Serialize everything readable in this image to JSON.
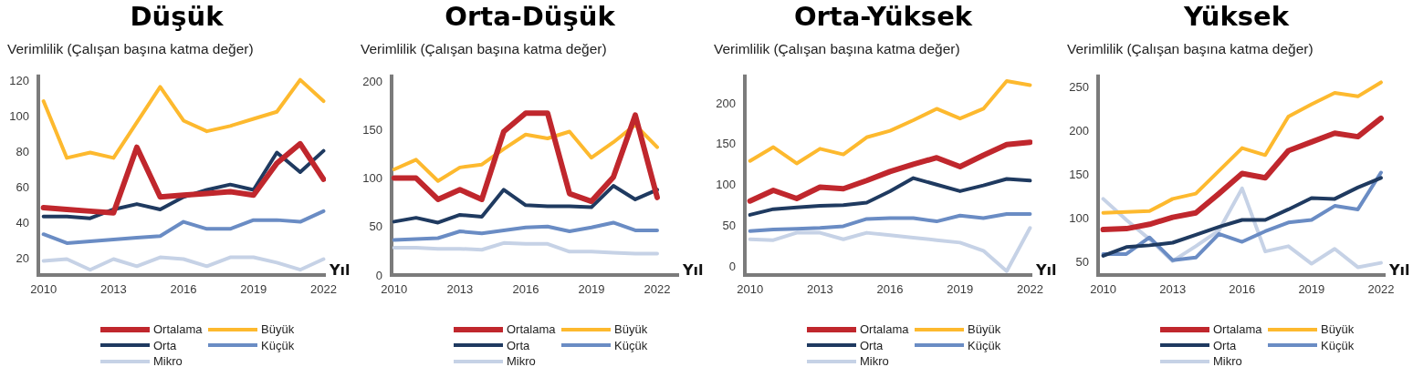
{
  "chart_data": [
    {
      "type": "line",
      "title": "Düşük",
      "ylabel": "Verimlilik (Çalışan başına katma değer)",
      "xlabel": "Yıl",
      "x": [
        2010,
        2011,
        2012,
        2013,
        2014,
        2015,
        2016,
        2017,
        2018,
        2019,
        2020,
        2021,
        2022
      ],
      "xlim": [
        2009.7,
        2022.1
      ],
      "xticks": [
        2010,
        2013,
        2016,
        2019,
        2022
      ],
      "ylim": [
        10,
        124
      ],
      "yticks": [
        20,
        40,
        60,
        80,
        100,
        120
      ],
      "legend": "bottom",
      "marker": "none",
      "series": [
        {
          "name": "Ortalama",
          "color": "#c0272d",
          "values": [
            49,
            48,
            47,
            46,
            83,
            55,
            56,
            57,
            58,
            56,
            74,
            85,
            65
          ]
        },
        {
          "name": "Büyük",
          "color": "#fdb92e",
          "values": [
            109,
            77,
            80,
            77,
            97,
            117,
            98,
            92,
            95,
            99,
            103,
            121,
            109
          ]
        },
        {
          "name": "Orta",
          "color": "#1f3a60",
          "values": [
            44,
            44,
            43,
            48,
            51,
            48,
            55,
            59,
            62,
            59,
            80,
            69,
            81
          ]
        },
        {
          "name": "Küçük",
          "color": "#6a8cc4",
          "values": [
            34,
            29,
            30,
            31,
            32,
            33,
            41,
            37,
            37,
            42,
            42,
            41,
            47
          ]
        },
        {
          "name": "Mikro",
          "color": "#c6d2e6",
          "values": [
            19,
            20,
            14,
            20,
            16,
            21,
            20,
            16,
            21,
            21,
            18,
            14,
            20
          ]
        }
      ]
    },
    {
      "type": "line",
      "title": "Orta-Düşük",
      "ylabel": "Verimlilik (Çalışan başına katma değer)",
      "xlabel": "Yıl",
      "x": [
        2010,
        2011,
        2012,
        2013,
        2014,
        2015,
        2016,
        2017,
        2018,
        2019,
        2020,
        2021,
        2022
      ],
      "xlim": [
        2009.8,
        2023
      ],
      "xticks": [
        2010,
        2013,
        2016,
        2019,
        2022
      ],
      "ylim": [
        -1,
        208
      ],
      "yticks": [
        0,
        50,
        100,
        150,
        200
      ],
      "legend": "bottom",
      "marker": "none",
      "series": [
        {
          "name": "Ortalama",
          "color": "#c0272d",
          "values": [
            101,
            101,
            79,
            89,
            79,
            149,
            168,
            168,
            85,
            77,
            102,
            166,
            81
          ]
        },
        {
          "name": "Büyük",
          "color": "#fdb92e",
          "values": [
            110,
            120,
            98,
            112,
            115,
            131,
            146,
            142,
            149,
            122,
            138,
            156,
            133
          ]
        },
        {
          "name": "Orta",
          "color": "#1f3a60",
          "values": [
            56,
            60,
            55,
            63,
            61,
            89,
            73,
            72,
            72,
            71,
            93,
            79,
            89
          ]
        },
        {
          "name": "Küçük",
          "color": "#6a8cc4",
          "values": [
            37,
            38,
            39,
            46,
            44,
            47,
            50,
            51,
            46,
            50,
            55,
            47,
            47
          ]
        },
        {
          "name": "Mikro",
          "color": "#c6d2e6",
          "values": [
            29,
            29,
            28,
            28,
            27,
            34,
            33,
            33,
            25,
            25,
            24,
            23,
            23
          ]
        }
      ]
    },
    {
      "type": "line",
      "title": "Orta-Yüksek",
      "ylabel": "Verimlilik (Çalışan başına katma değer)",
      "xlabel": "Yıl",
      "x": [
        2010,
        2011,
        2012,
        2013,
        2014,
        2015,
        2016,
        2017,
        2018,
        2019,
        2020,
        2021,
        2022
      ],
      "xlim": [
        2009.7,
        2022.1
      ],
      "xticks": [
        2010,
        2013,
        2016,
        2019,
        2022
      ],
      "ylim": [
        -12,
        236
      ],
      "yticks": [
        0,
        50,
        100,
        150,
        200
      ],
      "legend": "bottom",
      "marker": "none",
      "series": [
        {
          "name": "Ortalama",
          "color": "#c0272d",
          "values": [
            81,
            94,
            84,
            98,
            96,
            106,
            117,
            126,
            134,
            123,
            137,
            150,
            153
          ]
        },
        {
          "name": "Büyük",
          "color": "#fdb92e",
          "values": [
            130,
            147,
            127,
            145,
            138,
            159,
            167,
            180,
            194,
            182,
            194,
            228,
            223
          ]
        },
        {
          "name": "Orta",
          "color": "#1f3a60",
          "values": [
            64,
            71,
            73,
            75,
            76,
            79,
            93,
            109,
            101,
            93,
            100,
            108,
            106
          ]
        },
        {
          "name": "Küçük",
          "color": "#6a8cc4",
          "values": [
            44,
            46,
            47,
            48,
            50,
            59,
            60,
            60,
            56,
            63,
            60,
            65,
            65
          ]
        },
        {
          "name": "Mikro",
          "color": "#c6d2e6",
          "values": [
            34,
            33,
            42,
            42,
            34,
            42,
            39,
            36,
            33,
            30,
            20,
            -5,
            48
          ]
        }
      ]
    },
    {
      "type": "line",
      "title": "Yüksek",
      "ylabel": "Verimlilik (Çalışan başına katma değer)",
      "xlabel": "Yıl",
      "x": [
        2010,
        2011,
        2012,
        2013,
        2014,
        2015,
        2016,
        2017,
        2018,
        2019,
        2020,
        2021,
        2022
      ],
      "xlim": [
        2009.7,
        2022.2
      ],
      "xticks": [
        2010,
        2013,
        2016,
        2019,
        2022
      ],
      "ylim": [
        34,
        265
      ],
      "yticks": [
        50,
        100,
        150,
        200,
        250
      ],
      "legend": "bottom",
      "marker": "none",
      "series": [
        {
          "name": "Ortalama",
          "color": "#c0272d",
          "values": [
            88,
            89,
            94,
            102,
            107,
            129,
            152,
            147,
            178,
            188,
            198,
            194,
            215
          ]
        },
        {
          "name": "Büyük",
          "color": "#fdb92e",
          "values": [
            107,
            108,
            109,
            123,
            129,
            155,
            181,
            173,
            217,
            231,
            244,
            240,
            256
          ]
        },
        {
          "name": "Orta",
          "color": "#1f3a60",
          "values": [
            58,
            68,
            70,
            73,
            82,
            91,
            99,
            99,
            111,
            124,
            123,
            136,
            147
          ]
        },
        {
          "name": "Küçük",
          "color": "#6a8cc4",
          "values": [
            60,
            60,
            79,
            53,
            56,
            83,
            74,
            86,
            96,
            99,
            115,
            111,
            153
          ]
        },
        {
          "name": "Mikro",
          "color": "#c6d2e6",
          "values": [
            123,
            99,
            77,
            52,
            69,
            87,
            135,
            63,
            69,
            49,
            66,
            45,
            50
          ]
        }
      ]
    }
  ]
}
